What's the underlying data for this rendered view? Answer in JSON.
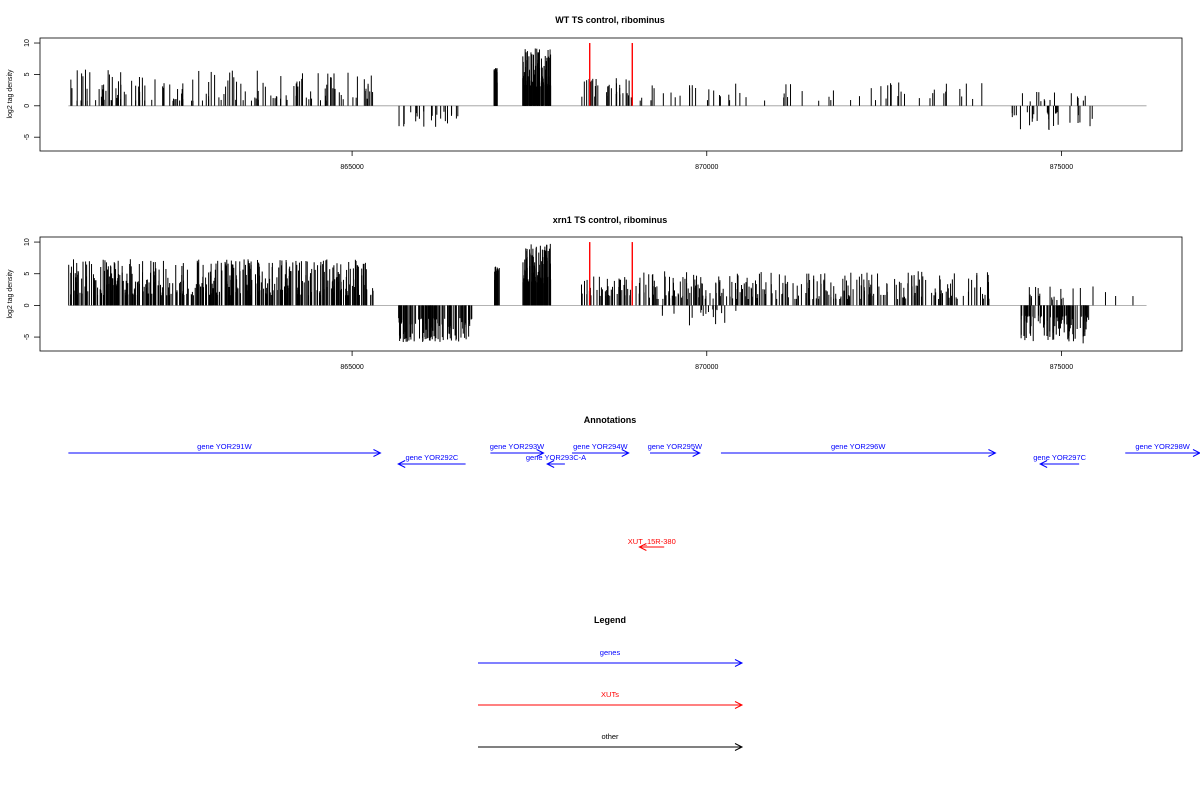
{
  "chart_data": [
    {
      "type": "bar",
      "title": "WT TS control, ribominus",
      "xlabel": "",
      "ylabel": "log2 tag density",
      "xlim": [
        860600,
        876700
      ],
      "ylim": [
        -7.2,
        10.8
      ],
      "xticks": [
        865000,
        870000,
        875000
      ],
      "yticks": [
        -5,
        0,
        5,
        10
      ],
      "baseline": {
        "x": [
          861000,
          876200
        ]
      },
      "highlight_lines": {
        "color": "#ff0000",
        "x": [
          868350,
          868950
        ],
        "y": [
          0,
          10
        ]
      },
      "bar_color": "#000000",
      "segments": [
        {
          "x0": 861000,
          "x1": 865300,
          "n": 140,
          "dir": 1,
          "base": 0.8,
          "amp": 2.3,
          "max": 5.8
        },
        {
          "x0": 865650,
          "x1": 866500,
          "n": 22,
          "dir": -1,
          "base": 0.9,
          "amp": 1.6,
          "max": 3.6
        },
        {
          "x0": 867000,
          "x1": 867070,
          "n": 14,
          "dir": 1,
          "base": 3.5,
          "amp": 2.0,
          "max": 6.0
        },
        {
          "x0": 867400,
          "x1": 867800,
          "n": 90,
          "dir": 1,
          "base": 3.0,
          "amp": 3.2,
          "max": 9.2
        },
        {
          "x0": 868200,
          "x1": 868950,
          "n": 30,
          "dir": 1,
          "base": 1.3,
          "amp": 1.6,
          "max": 4.5
        },
        {
          "x0": 869000,
          "x1": 874000,
          "n": 60,
          "dir": 1,
          "base": 0.8,
          "amp": 1.6,
          "max": 3.8
        },
        {
          "x0": 874300,
          "x1": 875500,
          "n": 28,
          "dir": -1,
          "base": 1.0,
          "amp": 1.4,
          "max": 5.8
        },
        {
          "x0": 874400,
          "x1": 875400,
          "n": 14,
          "dir": 1,
          "base": 0.7,
          "amp": 1.0,
          "max": 2.2
        }
      ]
    },
    {
      "type": "bar",
      "title": "xrn1 TS control, ribominus",
      "xlabel": "",
      "ylabel": "log2 tag density",
      "xlim": [
        860600,
        876700
      ],
      "ylim": [
        -7.2,
        10.8
      ],
      "xticks": [
        865000,
        870000,
        875000
      ],
      "yticks": [
        -5,
        0,
        5,
        10
      ],
      "baseline": {
        "x": [
          861000,
          876200
        ]
      },
      "highlight_lines": {
        "color": "#ff0000",
        "x": [
          868350,
          868950
        ],
        "y": [
          0,
          10
        ]
      },
      "bar_color": "#000000",
      "segments": [
        {
          "x0": 861000,
          "x1": 865300,
          "n": 420,
          "dir": 1,
          "base": 1.6,
          "amp": 3.0,
          "max": 7.3
        },
        {
          "x0": 865650,
          "x1": 866700,
          "n": 100,
          "dir": -1,
          "base": 2.0,
          "amp": 2.6,
          "max": 5.8
        },
        {
          "x0": 867000,
          "x1": 867080,
          "n": 16,
          "dir": 1,
          "base": 4.0,
          "amp": 2.0,
          "max": 6.2
        },
        {
          "x0": 867400,
          "x1": 867800,
          "n": 110,
          "dir": 1,
          "base": 3.5,
          "amp": 3.2,
          "max": 9.8
        },
        {
          "x0": 868200,
          "x1": 868950,
          "n": 40,
          "dir": 1,
          "base": 1.5,
          "amp": 1.8,
          "max": 4.6
        },
        {
          "x0": 869000,
          "x1": 874000,
          "n": 260,
          "dir": 1,
          "base": 1.0,
          "amp": 2.0,
          "max": 6.2
        },
        {
          "x0": 869300,
          "x1": 870500,
          "n": 18,
          "dir": -1,
          "base": 0.6,
          "amp": 1.4,
          "max": 3.2
        },
        {
          "x0": 874400,
          "x1": 875400,
          "n": 90,
          "dir": -1,
          "base": 1.6,
          "amp": 2.0,
          "max": 6.2
        },
        {
          "x0": 874400,
          "x1": 876100,
          "n": 22,
          "dir": 1,
          "base": 0.8,
          "amp": 1.2,
          "max": 3.0
        }
      ]
    }
  ],
  "annotations": {
    "title": "Annotations",
    "genes_color": "#0000ff",
    "xut_color": "#ff0000",
    "genes": [
      {
        "label": "gene YOR291W",
        "start": 861000,
        "end": 865400,
        "strand": "+",
        "row": 0
      },
      {
        "label": "gene YOR292C",
        "start": 865650,
        "end": 866600,
        "strand": "-",
        "row": 1
      },
      {
        "label": "gene YOR293W",
        "start": 866950,
        "end": 867700,
        "strand": "+",
        "row": 0
      },
      {
        "label": "gene YOR293C-A",
        "start": 867750,
        "end": 868000,
        "strand": "-",
        "row": 1
      },
      {
        "label": "gene YOR294W",
        "start": 868100,
        "end": 868900,
        "strand": "+",
        "row": 0
      },
      {
        "label": "gene YOR295W",
        "start": 869200,
        "end": 869900,
        "strand": "+",
        "row": 0
      },
      {
        "label": "gene YOR296W",
        "start": 870200,
        "end": 874070,
        "strand": "+",
        "row": 0
      },
      {
        "label": "gene YOR297C",
        "start": 874700,
        "end": 875250,
        "strand": "-",
        "row": 1
      },
      {
        "label": "gene YOR298W",
        "start": 875900,
        "end": 877000,
        "strand": "+",
        "row": 0
      }
    ],
    "xuts": [
      {
        "label": "XUT_15R-380",
        "start": 869050,
        "end": 869400,
        "strand": "-"
      }
    ]
  },
  "legend": {
    "title": "Legend",
    "items": [
      {
        "label": "genes",
        "color": "#0000ff"
      },
      {
        "label": "XUTs",
        "color": "#ff0000"
      },
      {
        "label": "other",
        "color": "#000000"
      }
    ]
  }
}
